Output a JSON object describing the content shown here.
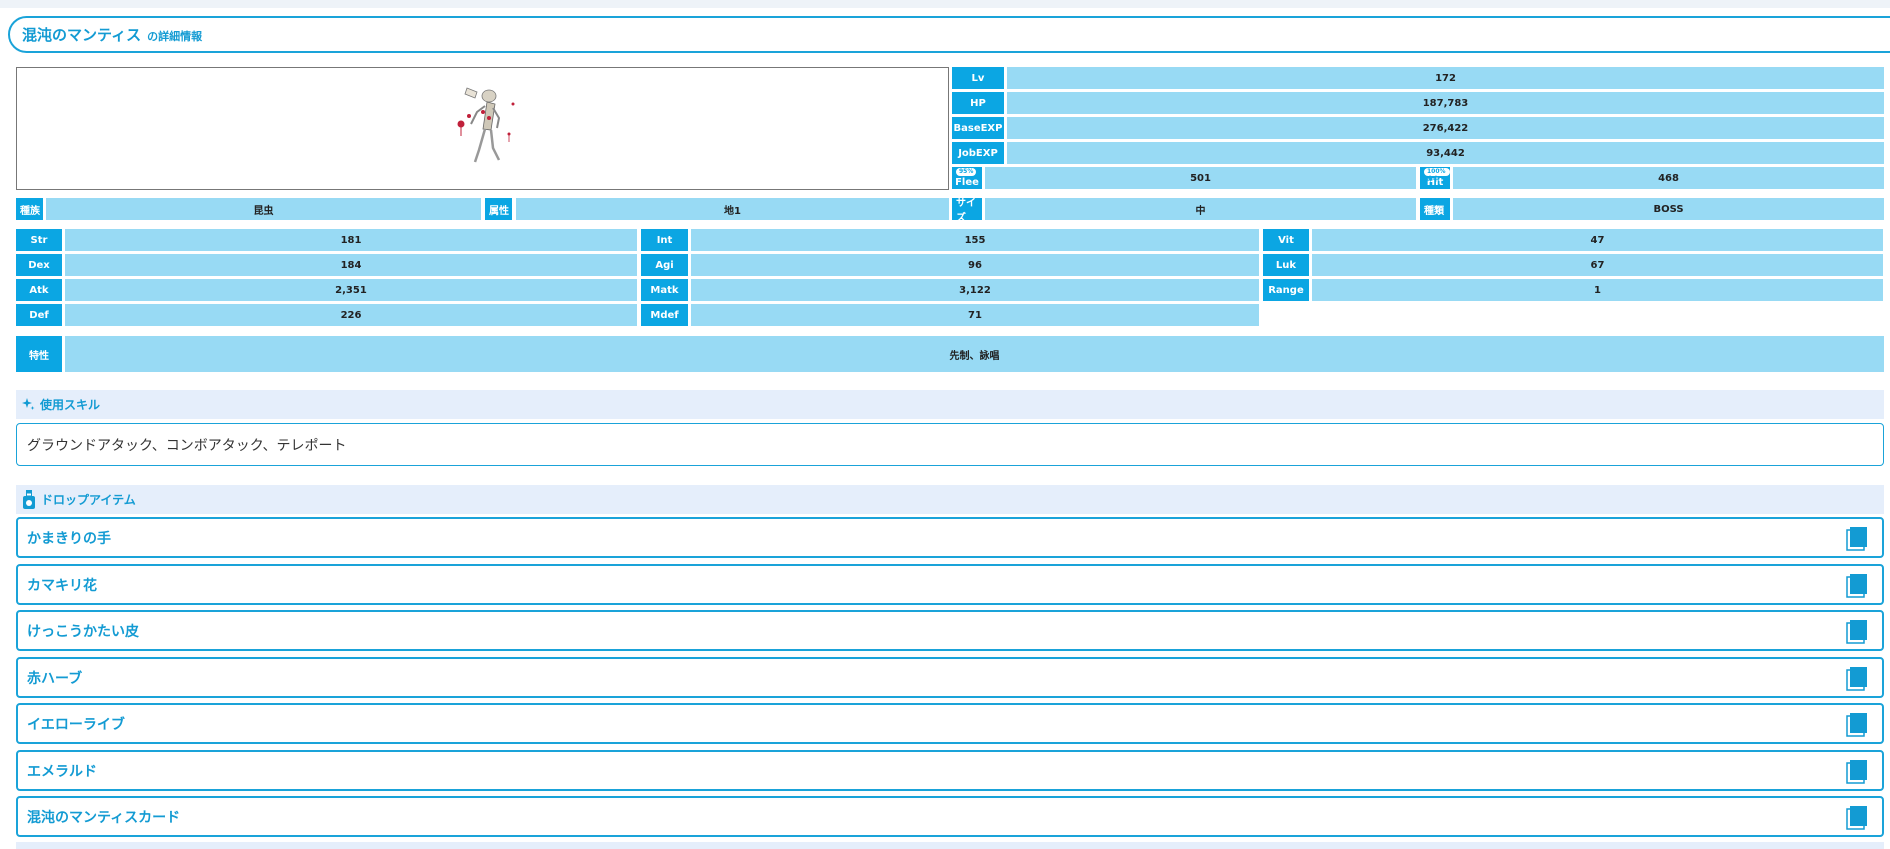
{
  "header": {
    "title": "混沌のマンティス",
    "subtitle": "の詳細情報"
  },
  "image": {
    "alt_icon": "monster-sprite"
  },
  "stats_right": [
    {
      "label": "Lv",
      "value": "172"
    },
    {
      "label": "HP",
      "value": "187,783"
    },
    {
      "label": "BaseEXP",
      "value": "276,422"
    },
    {
      "label": "JobEXP",
      "value": "93,442"
    }
  ],
  "flee": {
    "label": "Flee",
    "badge": "95%",
    "value": "501"
  },
  "hit": {
    "label": "Hit",
    "badge": "100%命中",
    "value": "468"
  },
  "attributes": {
    "race_label": "種族",
    "race": "昆虫",
    "element_label": "属性",
    "element": "地1",
    "size_label": "サイズ",
    "size": "中",
    "type_label": "種類",
    "type": "BOSS"
  },
  "stats": {
    "str": {
      "label": "Str",
      "value": "181"
    },
    "int": {
      "label": "Int",
      "value": "155"
    },
    "vit": {
      "label": "Vit",
      "value": "47"
    },
    "dex": {
      "label": "Dex",
      "value": "184"
    },
    "agi": {
      "label": "Agi",
      "value": "96"
    },
    "luk": {
      "label": "Luk",
      "value": "67"
    },
    "atk": {
      "label": "Atk",
      "value": "2,351"
    },
    "matk": {
      "label": "Matk",
      "value": "3,122"
    },
    "range": {
      "label": "Range",
      "value": "1"
    },
    "def": {
      "label": "Def",
      "value": "226"
    },
    "mdef": {
      "label": "Mdef",
      "value": "71"
    }
  },
  "traits": {
    "label": "特性",
    "value": "先制、詠唱"
  },
  "skills": {
    "heading": "使用スキル",
    "icon": "sparkle-icon",
    "text": "グラウンドアタック、コンボアタック、テレポート"
  },
  "drops": {
    "heading": "ドロップアイテム",
    "icon": "potion-bottle-icon",
    "item_icon": "book-icon",
    "items": [
      "かまきりの手",
      "カマキリ花",
      "けっこうかたい皮",
      "赤ハーブ",
      "イエローライブ",
      "エメラルド",
      "混沌のマンティスカード"
    ]
  },
  "colors": {
    "accent": "#0ba6e3",
    "value_bg": "#98daf4",
    "section_bg": "#e5eefb",
    "text_accent": "#139bd3"
  }
}
